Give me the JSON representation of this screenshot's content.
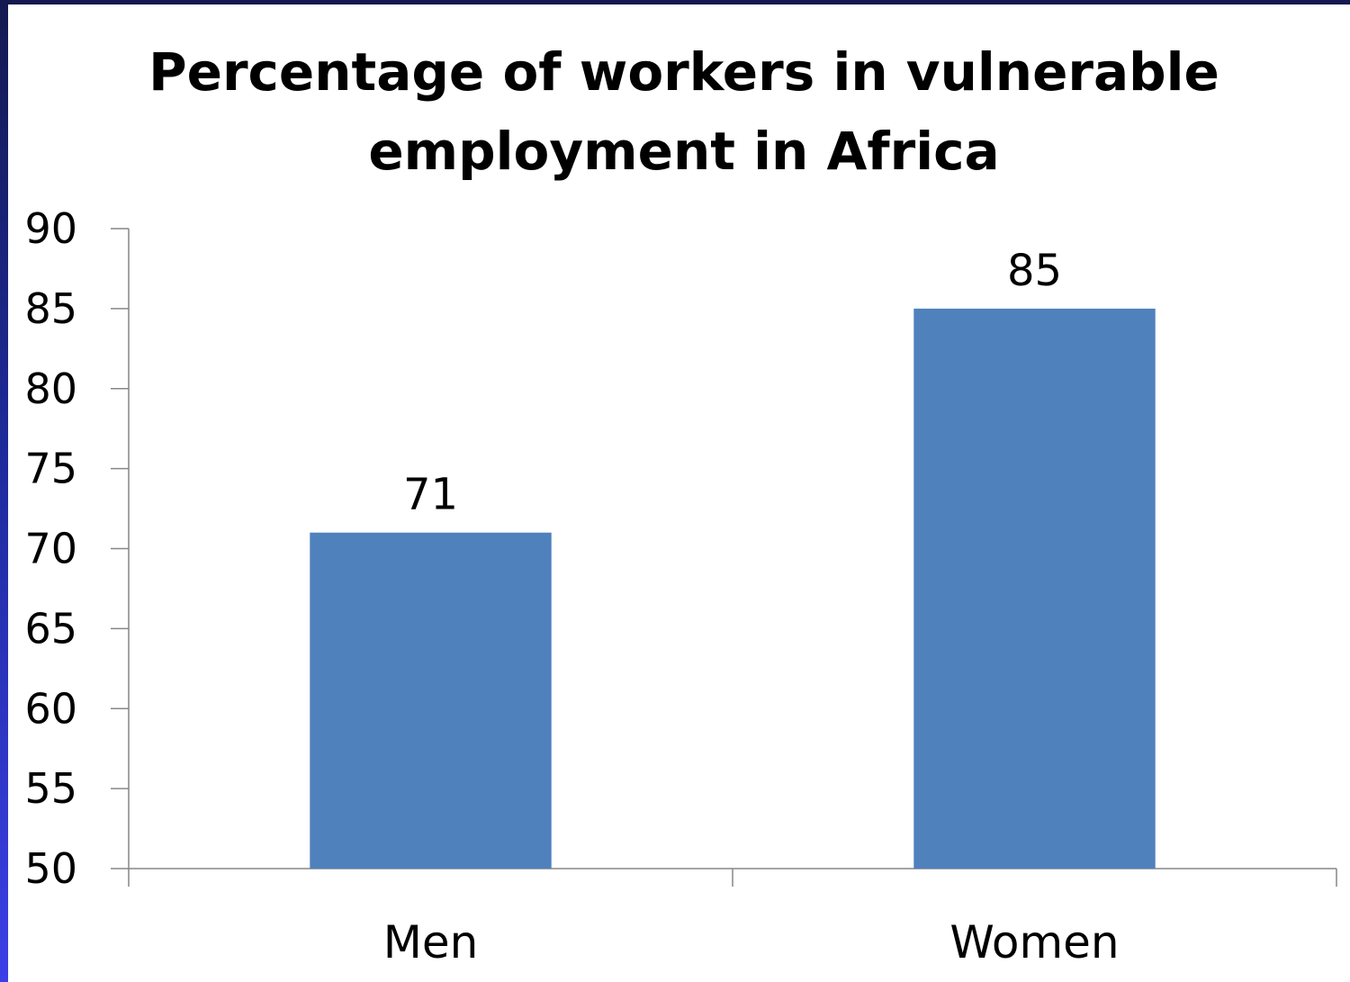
{
  "chart_data": {
    "type": "bar",
    "title": "Percentage of workers in vulnerable employment in Africa",
    "categories": [
      "Men",
      "Women"
    ],
    "values": [
      71,
      85
    ],
    "data_labels": [
      "71",
      "85"
    ],
    "ylim": [
      50,
      90
    ],
    "y_ticks": [
      50,
      55,
      60,
      65,
      70,
      75,
      80,
      85,
      90
    ],
    "xlabel": "",
    "ylabel": "",
    "grid": false,
    "legend": "none",
    "bar_color": "#4f81bd",
    "axis_color": "#868686"
  }
}
